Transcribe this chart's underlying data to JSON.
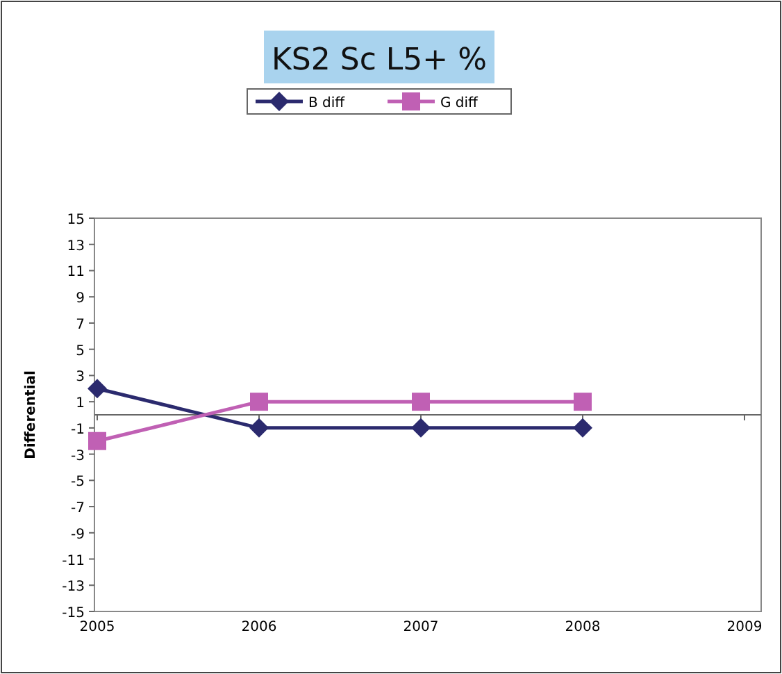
{
  "chart_data": {
    "type": "line",
    "title": "KS2 Sc L5+ %",
    "ylabel": "Differential",
    "categories": [
      "2005",
      "2006",
      "2007",
      "2008",
      "2009"
    ],
    "series": [
      {
        "name": "B diff",
        "color": "#2b2a6e",
        "values": [
          2,
          -1,
          -1,
          -1,
          null
        ],
        "marker": "diamond"
      },
      {
        "name": "G diff",
        "color": "#c060b4",
        "values": [
          -2,
          1,
          1,
          1,
          null
        ],
        "marker": "square"
      }
    ],
    "ylim": [
      -15,
      15
    ],
    "yticks": [
      -15,
      -13,
      -11,
      -9,
      -7,
      -5,
      -3,
      -1,
      1,
      3,
      5,
      7,
      9,
      11,
      13,
      15
    ],
    "grid": false,
    "legend": "top",
    "line_style": "solid"
  }
}
